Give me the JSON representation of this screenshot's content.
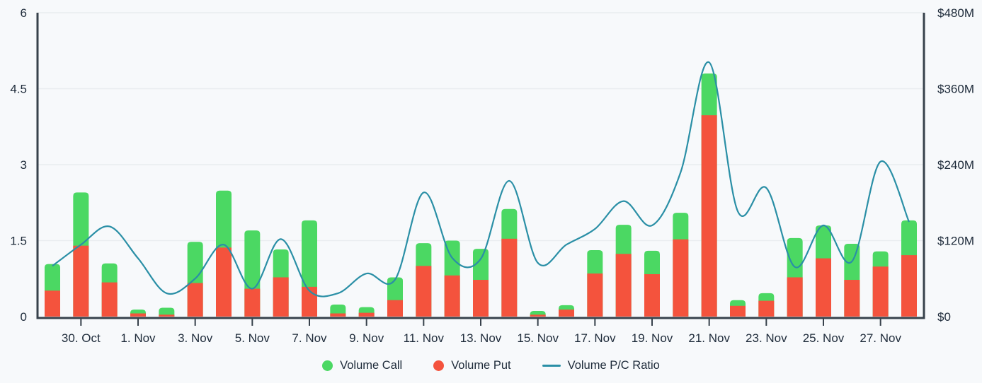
{
  "colors": {
    "call_green": "#4BD863",
    "put_red": "#F4533D",
    "ratio_teal": "#2A8FA6",
    "axis_dark": "#37414B",
    "grid": "#E9EDF0",
    "text": "#1E2B3A",
    "background": "#F7F9FB"
  },
  "chart_data": {
    "type": "combo-stacked-bar-line",
    "x": [
      "29. Oct",
      "30. Oct",
      "31. Oct",
      "1. Nov",
      "2. Nov",
      "3. Nov",
      "4. Nov",
      "5. Nov",
      "6. Nov",
      "7. Nov",
      "8. Nov",
      "9. Nov",
      "10. Nov",
      "11. Nov",
      "12. Nov",
      "13. Nov",
      "14. Nov",
      "15. Nov",
      "16. Nov",
      "17. Nov",
      "18. Nov",
      "19. Nov",
      "20. Nov",
      "21. Nov",
      "22. Nov",
      "23. Nov",
      "24. Nov",
      "25. Nov",
      "26. Nov",
      "27. Nov",
      "28. Nov"
    ],
    "x_tick_labels": [
      "30. Oct",
      "1. Nov",
      "3. Nov",
      "5. Nov",
      "7. Nov",
      "9. Nov",
      "11. Nov",
      "13. Nov",
      "15. Nov",
      "17. Nov",
      "19. Nov",
      "21. Nov",
      "23. Nov",
      "25. Nov",
      "27. Nov"
    ],
    "left_axis": {
      "tick_labels": [
        "0",
        "1.5",
        "3",
        "4.5",
        "6"
      ],
      "tick_values": [
        0,
        1.5,
        3,
        4.5,
        6
      ],
      "range": [
        0,
        6
      ]
    },
    "right_axis": {
      "tick_labels": [
        "$0",
        "$120M",
        "$240M",
        "$360M",
        "$480M"
      ],
      "tick_values_musd": [
        0,
        120,
        240,
        360,
        480
      ],
      "range_musd": [
        0,
        480
      ]
    },
    "series": [
      {
        "name": "Volume Call",
        "type": "bar",
        "stack": "volume",
        "axis": "right",
        "unit": "$M",
        "values": [
          42,
          84,
          30,
          6,
          11,
          65,
          90,
          92,
          44,
          105,
          14,
          9,
          36,
          36,
          55,
          49,
          47,
          6,
          7,
          37,
          46,
          37,
          42,
          66,
          9,
          12,
          62,
          52,
          57,
          24,
          55
        ]
      },
      {
        "name": "Volume Put",
        "type": "bar",
        "stack": "volume",
        "axis": "right",
        "unit": "$M",
        "values": [
          41,
          112,
          54,
          5,
          3,
          53,
          109,
          44,
          62,
          47,
          5,
          6,
          26,
          80,
          65,
          58,
          123,
          3,
          11,
          68,
          99,
          67,
          122,
          318,
          17,
          25,
          62,
          92,
          58,
          79,
          97
        ]
      },
      {
        "name": "Volume P/C Ratio",
        "type": "line",
        "axis": "left",
        "values": [
          1.0,
          1.42,
          1.78,
          1.15,
          0.46,
          0.75,
          1.42,
          0.55,
          1.53,
          0.51,
          0.46,
          0.85,
          0.73,
          2.45,
          1.16,
          1.14,
          2.68,
          1.06,
          1.42,
          1.73,
          2.28,
          1.8,
          2.85,
          5.02,
          2.08,
          2.54,
          0.98,
          1.8,
          1.09,
          3.06,
          1.87
        ]
      }
    ],
    "grid": "horizontal",
    "legend_position": "bottom-center"
  }
}
